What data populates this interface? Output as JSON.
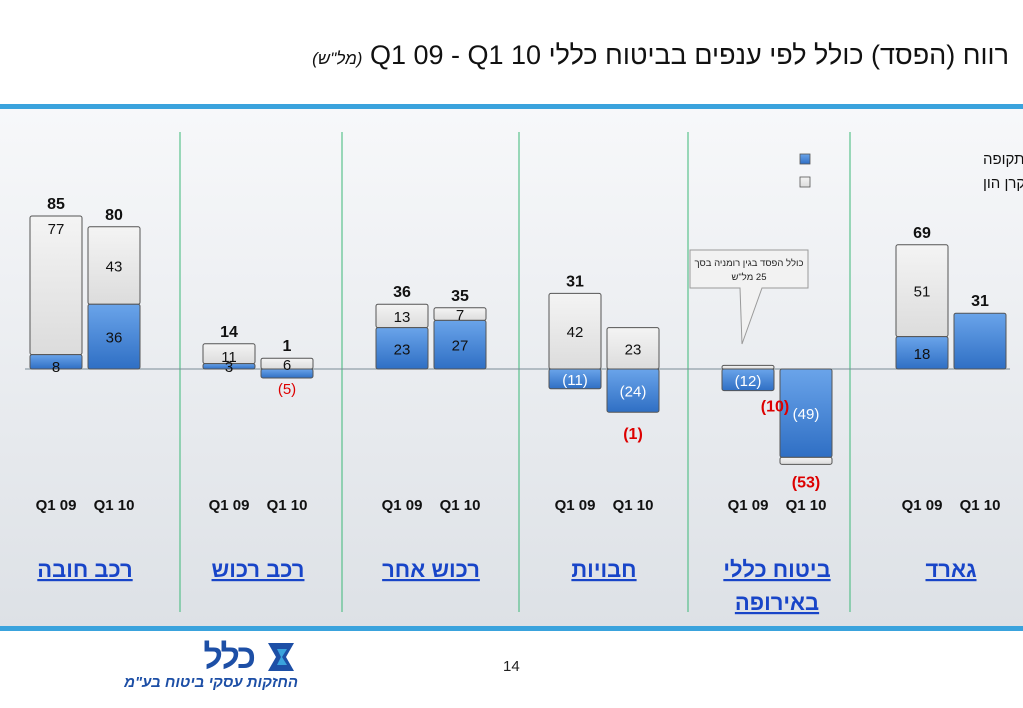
{
  "slide": {
    "title": "רווח (הפסד) כולל לפי ענפים בביטוח כללי Q1 09 - Q1 10",
    "unit": "(מל\"ש)",
    "page_number": "14",
    "logo_text": "כלל",
    "logo_subtitle": "החזקות עסקי ביטוח בע\"מ"
  },
  "chart_data": {
    "type": "bar",
    "stacked": true,
    "legend": {
      "position": "top-right",
      "entries": [
        {
          "label": "רווח (הפסד) לתקופה",
          "color": "#4a87d6"
        },
        {
          "label": "תנועה בקרן הון",
          "color": "#e2e2e2"
        }
      ]
    },
    "period_labels": [
      "Q1 09",
      "Q1 10"
    ],
    "annotation": "כולל הפסד בגין רומניה בסך 25 מל\"ש",
    "colors": {
      "profit": "#4a87d6",
      "capital": "#e2e2e2",
      "negative_total": "#dd0000",
      "divider": "#3cb878",
      "accent": "#3aa3dd"
    },
    "groups": [
      {
        "name": "גארד",
        "bars": [
          {
            "period": "Q1 09",
            "profit": 18,
            "capital": 51,
            "total": 69,
            "profit_label": "18",
            "capital_label": "51",
            "total_label": "69"
          },
          {
            "period": "Q1 10",
            "profit": 31,
            "capital": 0,
            "total": 31,
            "profit_label": "",
            "capital_label": "",
            "total_label": "31"
          }
        ]
      },
      {
        "name": "ביטוח כללי באירופה",
        "bars": [
          {
            "period": "Q1 09",
            "profit": -12,
            "capital": 2,
            "total": -10,
            "profit_label": "(12)",
            "capital_label": "",
            "total_label": "(10)"
          },
          {
            "period": "Q1 10",
            "profit": -49,
            "capital": -4,
            "total": -53,
            "profit_label": "(49)",
            "capital_label": "",
            "total_label": "(53)"
          }
        ]
      },
      {
        "name": "חבויות",
        "bars": [
          {
            "period": "Q1 09",
            "profit": -11,
            "capital": 42,
            "total": 31,
            "profit_label": "(11)",
            "capital_label": "42",
            "total_label": "31"
          },
          {
            "period": "Q1 10",
            "profit": -24,
            "capital": 23,
            "total": -1,
            "profit_label": "(24)",
            "capital_label": "23",
            "total_label": "(1)"
          }
        ]
      },
      {
        "name": "רכוש אחר",
        "bars": [
          {
            "period": "Q1 09",
            "profit": 23,
            "capital": 13,
            "total": 36,
            "profit_label": "23",
            "capital_label": "13",
            "total_label": "36"
          },
          {
            "period": "Q1 10",
            "profit": 27,
            "capital": 7,
            "total": 35,
            "profit_label": "27",
            "capital_label": "7",
            "total_label": "35"
          }
        ]
      },
      {
        "name": "רכב רכוש",
        "bars": [
          {
            "period": "Q1 09",
            "profit": 3,
            "capital": 11,
            "total": 14,
            "profit_label": "3",
            "capital_label": "11",
            "total_label": "14"
          },
          {
            "period": "Q1 10",
            "profit": -5,
            "capital": 6,
            "total": 1,
            "profit_label": "(5)",
            "capital_label": "6",
            "total_label": "1"
          }
        ]
      },
      {
        "name": "רכב חובה",
        "bars": [
          {
            "period": "Q1 09",
            "profit": 8,
            "capital": 77,
            "total": 85,
            "profit_label": "8",
            "capital_label": "77",
            "total_label": "85"
          },
          {
            "period": "Q1 10",
            "profit": 36,
            "capital": 43,
            "total": 80,
            "profit_label": "36",
            "capital_label": "43",
            "total_label": "80"
          }
        ]
      }
    ]
  }
}
